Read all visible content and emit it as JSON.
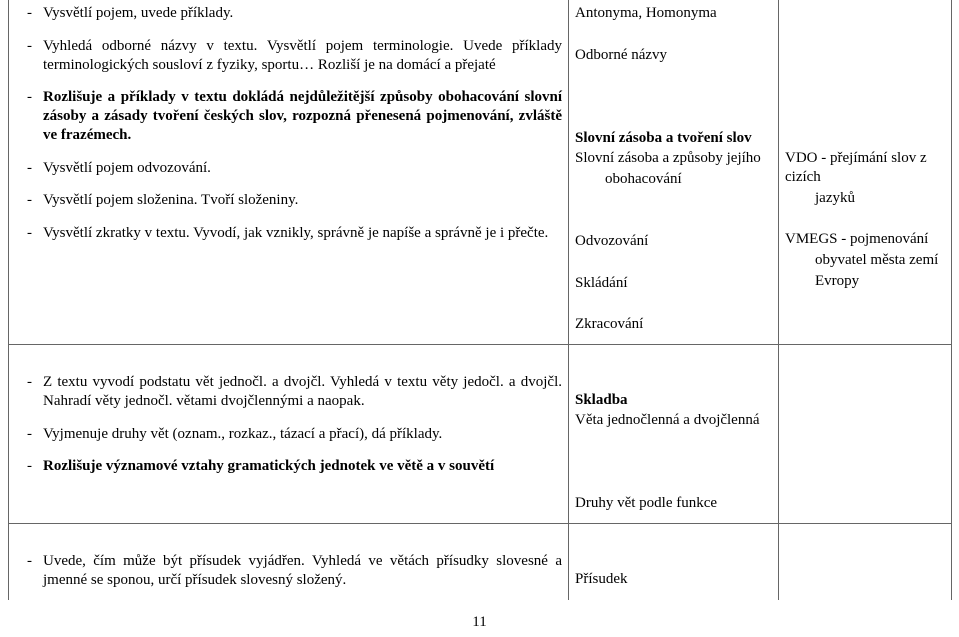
{
  "row1": {
    "left": {
      "items": [
        {
          "text": "Vysvětlí pojem, uvede příklady.",
          "bold": false
        },
        {
          "text": "Vyhledá odborné názvy v textu. Vysvětlí pojem terminologie. Uvede příklady terminologických sousloví z fyziky, sportu… Rozliší je na domácí a přejaté",
          "bold": false
        },
        {
          "text": "Rozlišuje a příklady v textu dokládá nejdůležitější způsoby obohacování slovní zásoby a zásady tvoření českých slov, rozpozná přenesená pojmenování, zvláště ve frazémech.",
          "bold": true
        },
        {
          "text": "Vysvětlí pojem odvozování.",
          "bold": false
        },
        {
          "text": "Vysvětlí pojem složenina. Tvoří složeniny.",
          "bold": false
        },
        {
          "text": "Vysvětlí zkratky v textu. Vyvodí, jak vznikly, správně je napíše a správně je i přečte.",
          "bold": false
        }
      ]
    },
    "mid": {
      "lines": [
        "Antonyma, Homonyma",
        "",
        "Odborné názvy",
        "",
        "",
        "",
        "<b>Slovní zásoba a tvoření slov</b>",
        "Slovní zásoba a způsoby jejího",
        "<ind>obohacování",
        "",
        "",
        "Odvozování",
        "",
        "Skládání",
        "",
        "Zkracování"
      ]
    },
    "right": {
      "lines": [
        "",
        "",
        "",
        "",
        "",
        "",
        "",
        "VDO - přejímání slov z cizích",
        "<ind>jazyků",
        "",
        "VMEGS - pojmenování",
        "<ind>obyvatel města zemí",
        "<ind>Evropy"
      ]
    }
  },
  "row2": {
    "left": {
      "items": [
        {
          "text": "Z textu vyvodí podstatu vět jednočl. a dvojčl. Vyhledá v textu věty jedočl. a dvojčl. Nahradí věty jednočl. větami dvojčlennými a naopak.",
          "bold": false,
          "topspace": true
        },
        {
          "text": "Vyjmenuje druhy vět (oznam., rozkaz., tázací a přací), dá příklady.",
          "bold": false
        },
        {
          "text": "Rozlišuje významové vztahy gramatických jednotek ve větě a v souvětí",
          "bold": true
        }
      ]
    },
    "mid": {
      "lines": [
        "",
        "",
        "<b>Skladba</b>",
        "Věta jednočlenná a dvojčlenná",
        "",
        "",
        "",
        "Druhy vět podle funkce"
      ]
    },
    "right": {
      "lines": []
    }
  },
  "row3": {
    "left": {
      "items": [
        {
          "text": "Uvede, čím může být přísudek vyjádřen. Vyhledá ve větách přísudky slovesné a jmenné se sponou, určí přísudek slovesný složený.",
          "bold": false,
          "topspace": true
        }
      ]
    },
    "mid": {
      "lines": [
        "",
        "",
        "Přísudek"
      ]
    },
    "right": {
      "lines": []
    }
  },
  "pagenum": "11"
}
